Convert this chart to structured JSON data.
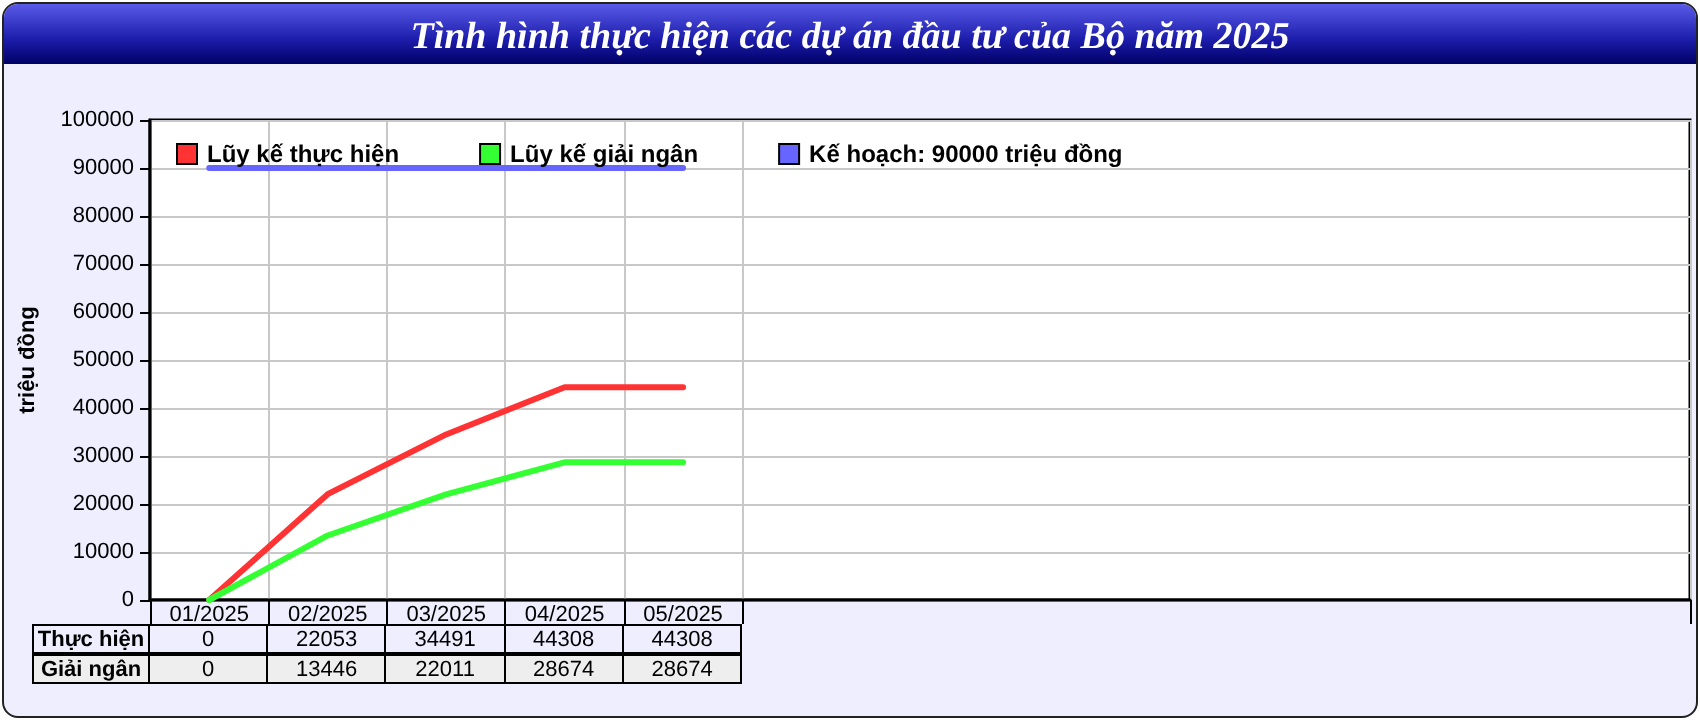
{
  "chart_data": {
    "type": "line",
    "title": "Tình hình thực hiện các dự án đầu tư của Bộ năm 2025",
    "ylabel": "triệu đồng",
    "categories": [
      "01/2025",
      "02/2025",
      "03/2025",
      "04/2025",
      "05/2025",
      null,
      null,
      null,
      null,
      null,
      null,
      null,
      null
    ],
    "series": [
      {
        "name": "Lũy kế thực hiện",
        "color": "#ff3333",
        "values": [
          0,
          22053,
          34491,
          44308,
          44308,
          null,
          null,
          null,
          null,
          null,
          null,
          null,
          null
        ],
        "value_labels": [
          "0",
          "22053",
          "34491",
          "44308",
          "44308",
          null,
          null,
          null,
          null,
          null,
          null,
          null,
          null
        ]
      },
      {
        "name": "Lũy kế giải ngân",
        "color": "#33ff33",
        "values": [
          0,
          13446,
          22011,
          28674,
          28674,
          null,
          null,
          null,
          null,
          null,
          null,
          null,
          null
        ],
        "value_labels": [
          "0",
          "13446",
          "22011",
          "28674",
          "28674",
          null,
          null,
          null,
          null,
          null,
          null,
          null,
          null
        ]
      },
      {
        "name": "Kế hoạch: 90000 triệu đồng",
        "color": "#6666ff",
        "values": [
          90000,
          90000,
          90000,
          90000,
          90000,
          null,
          null,
          null,
          null,
          null,
          null,
          null,
          null
        ]
      }
    ],
    "annotations": [
      "Thực hiện",
      "Giải ngân"
    ],
    "ylim": [
      0,
      100000
    ],
    "yticks": [
      0,
      10000,
      20000,
      30000,
      40000,
      50000,
      60000,
      70000,
      80000,
      90000,
      100000
    ],
    "grid": true,
    "legend": "top left",
    "marker": "none",
    "line_style": "solid"
  }
}
